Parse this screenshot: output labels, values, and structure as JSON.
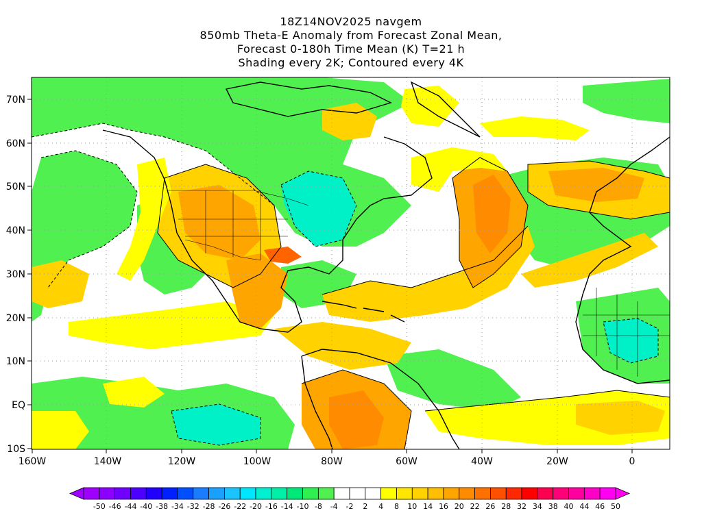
{
  "title": {
    "line1": "18Z14NOV2025 navgem",
    "line2": "850mb Theta-E Anomaly from Forecast Zonal Mean,",
    "line3": "Forecast 0-180h Time Mean (K) T=21 h",
    "line4": "Shading every 2K; Contoured every 4K"
  },
  "axes": {
    "lat_labels": [
      "70N",
      "60N",
      "50N",
      "40N",
      "30N",
      "20N",
      "10N",
      "EQ",
      "10S"
    ],
    "lon_labels": [
      "160W",
      "140W",
      "120W",
      "100W",
      "80W",
      "60W",
      "40W",
      "20W",
      "0"
    ],
    "lat_range": [
      -10,
      75
    ],
    "lon_range": [
      -160,
      10
    ]
  },
  "colorbar": {
    "labels": [
      "-50",
      "-46",
      "-44",
      "-40",
      "-38",
      "-34",
      "-32",
      "-28",
      "-26",
      "-22",
      "-20",
      "-16",
      "-14",
      "-10",
      "-8",
      "-4",
      "-2",
      "2",
      "4",
      "8",
      "10",
      "14",
      "16",
      "20",
      "22",
      "26",
      "28",
      "32",
      "34",
      "38",
      "40",
      "44",
      "46",
      "50"
    ],
    "colors": [
      "#a000ff",
      "#8c00ff",
      "#7000ff",
      "#4c00ff",
      "#2000ff",
      "#0020ff",
      "#0050ff",
      "#1a7cff",
      "#1aa0ff",
      "#1ac4ff",
      "#00e6ff",
      "#00f0d0",
      "#00f0a8",
      "#00e878",
      "#2ef050",
      "#50f050",
      "#ffffff",
      "#ffffff",
      "#ffffff",
      "#ffff00",
      "#ffe600",
      "#ffd200",
      "#ffbe00",
      "#ffa500",
      "#ff8c00",
      "#ff7000",
      "#ff5000",
      "#ff2800",
      "#ff0000",
      "#ff0050",
      "#ff0078",
      "#ff00a0",
      "#ff00c8",
      "#ff00f0"
    ]
  },
  "map": {
    "colors": {
      "green": "#50f050",
      "green_dark": "#2ee65a",
      "cyan": "#00f0c8",
      "cyan_light": "#5af0e0",
      "yellow": "#ffff00",
      "gold": "#ffd200",
      "orange": "#ffa500",
      "orange_dark": "#ff8c00",
      "red_orange": "#ff6400"
    }
  }
}
